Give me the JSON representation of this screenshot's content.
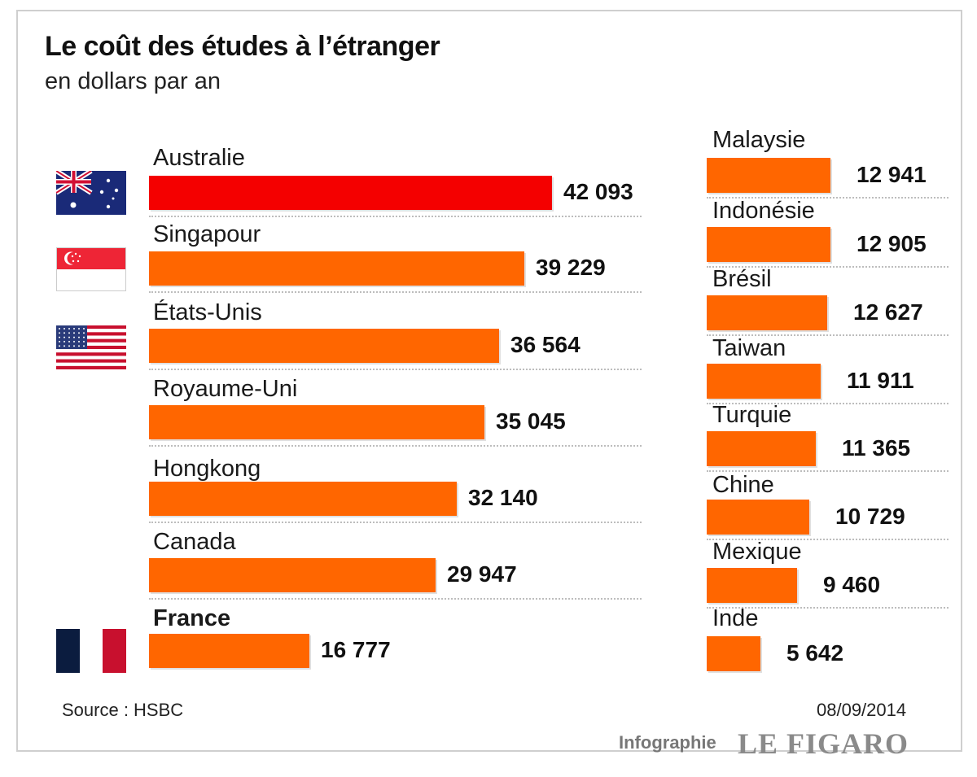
{
  "chart_data": {
    "type": "bar",
    "title": "Le coût des études à l’étranger",
    "subtitle": "en dollars par an",
    "left_column": [
      {
        "label": "Australie",
        "value": 42093,
        "value_text": "42 093",
        "color": "#f40000",
        "bold": false,
        "flag": "australia-flag-icon"
      },
      {
        "label": "Singapour",
        "value": 39229,
        "value_text": "39 229",
        "color": "#ff6600",
        "bold": false,
        "flag": "singapore-flag-icon"
      },
      {
        "label": "États-Unis",
        "value": 36564,
        "value_text": "36 564",
        "color": "#ff6600",
        "bold": false,
        "flag": "usa-flag-icon"
      },
      {
        "label": "Royaume-Uni",
        "value": 35045,
        "value_text": "35 045",
        "color": "#ff6600",
        "bold": false,
        "flag": ""
      },
      {
        "label": "Hongkong",
        "value": 32140,
        "value_text": "32 140",
        "color": "#ff6600",
        "bold": false,
        "flag": ""
      },
      {
        "label": "Canada",
        "value": 29947,
        "value_text": "29 947",
        "color": "#ff6600",
        "bold": false,
        "flag": ""
      },
      {
        "label": "France",
        "value": 16777,
        "value_text": "16 777",
        "color": "#ff6600",
        "bold": true,
        "flag": "france-flag-icon"
      }
    ],
    "right_column": [
      {
        "label": "Malaysie",
        "value": 12941,
        "value_text": "12 941",
        "color": "#ff6600"
      },
      {
        "label": "Indonésie",
        "value": 12905,
        "value_text": "12 905",
        "color": "#ff6600"
      },
      {
        "label": "Brésil",
        "value": 12627,
        "value_text": "12 627",
        "color": "#ff6600"
      },
      {
        "label": "Taiwan",
        "value": 11911,
        "value_text": "11 911",
        "color": "#ff6600"
      },
      {
        "label": "Turquie",
        "value": 11365,
        "value_text": "11 365",
        "color": "#ff6600"
      },
      {
        "label": "Chine",
        "value": 10729,
        "value_text": "10 729",
        "color": "#ff6600"
      },
      {
        "label": "Mexique",
        "value": 9460,
        "value_text": "9 460",
        "color": "#ff6600"
      },
      {
        "label": "Inde",
        "value": 5642,
        "value_text": "5 642",
        "color": "#ff6600"
      }
    ]
  },
  "footer": {
    "source": "Source : HSBC",
    "date": "08/09/2014",
    "credit": "Infographie",
    "brand": "LE FIGARO"
  }
}
